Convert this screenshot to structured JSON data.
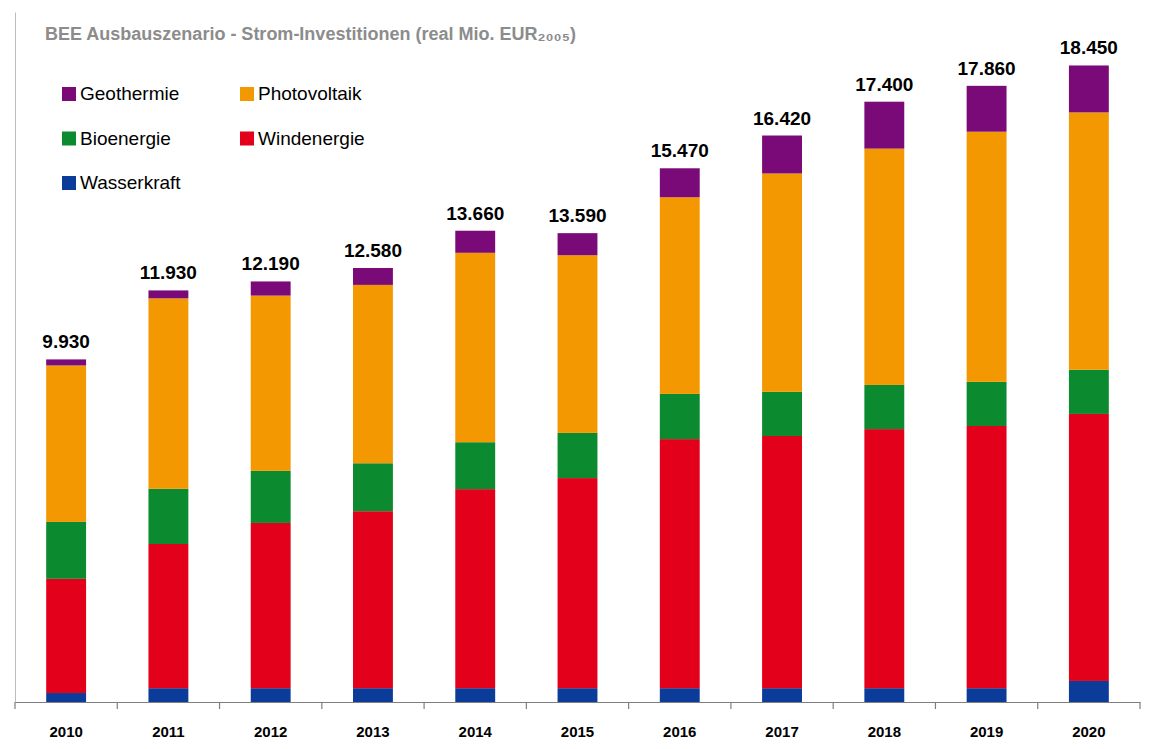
{
  "chart_data": {
    "type": "bar",
    "title": "BEE Ausbauszenario - Strom-Investitionen (real Mio. EUR₂₀₀₅)",
    "stacked": true,
    "legend": "top-left",
    "data_labels": false,
    "tick_labels": "x",
    "categories": [
      "2010",
      "2011",
      "2012",
      "2013",
      "2014",
      "2015",
      "2016",
      "2017",
      "2018",
      "2019",
      "2020"
    ],
    "ylim": [
      0,
      20000
    ],
    "series": [
      {
        "name": "Wasserkraft",
        "color": "#0b3c9a",
        "values": [
          260,
          400,
          400,
          400,
          400,
          400,
          400,
          400,
          400,
          400,
          610
        ]
      },
      {
        "name": "Windenergie",
        "color": "#e2001a",
        "values": [
          3310,
          4180,
          4790,
          5130,
          5770,
          6090,
          7220,
          7310,
          7510,
          7600,
          7740
        ]
      },
      {
        "name": "Bioenergie",
        "color": "#0b8a2f",
        "values": [
          1650,
          1600,
          1510,
          1390,
          1360,
          1310,
          1310,
          1280,
          1280,
          1280,
          1280
        ]
      },
      {
        "name": "Photovoltaik",
        "color": "#f39800",
        "values": [
          4535,
          5520,
          5080,
          5170,
          5490,
          5150,
          5700,
          6330,
          6850,
          7250,
          7460
        ]
      },
      {
        "name": "Geothermie",
        "color": "#7a0a78",
        "values": [
          175,
          230,
          410,
          490,
          640,
          640,
          840,
          1100,
          1360,
          1330,
          1360
        ]
      }
    ],
    "totals": [
      9930,
      11930,
      12190,
      12580,
      13660,
      13590,
      15470,
      16420,
      17400,
      17860,
      18450
    ],
    "total_labels": [
      "9.930",
      "11.930",
      "12.190",
      "12.580",
      "13.660",
      "13.590",
      "15.470",
      "16.420",
      "17.400",
      "17.860",
      "18.450"
    ]
  }
}
